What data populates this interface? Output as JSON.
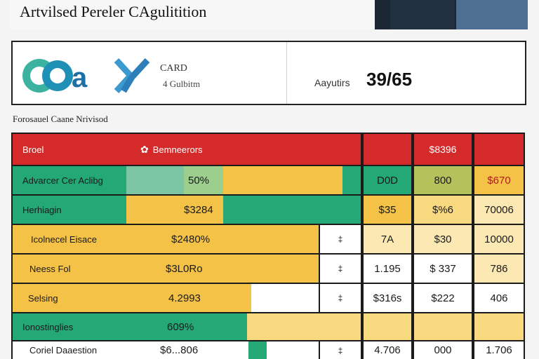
{
  "header": {
    "title": "Artvilsed Pereler CAgulitition"
  },
  "card": {
    "logo_text": "COa",
    "label": "CARD",
    "sublabel": "4 Gulbitm",
    "metric_label": "Aayutirs",
    "metric_value": "39/65"
  },
  "section_title": "Forosauel Caane Nrivisod",
  "table": {
    "header": {
      "left_label": "Broel",
      "icon": "gear-icon",
      "mid_label": "Bemneerors",
      "col4": "",
      "col5": "$8396",
      "col6": ""
    },
    "rows": [
      {
        "label": "Advarcer Cer Aclibg",
        "bar_value": "50%",
        "c3": "",
        "c4": "D0D",
        "c5": "800",
        "c6": "$670"
      },
      {
        "label": "Herhiagin",
        "bar_value": "$3284",
        "c3": "",
        "c4": "$35",
        "c5": "$%6",
        "c6": "70006"
      },
      {
        "label": "Icolnecel Eisace",
        "bar_value": "$2480%",
        "c3": "‡",
        "c4": "7A",
        "c5": "$30",
        "c6": "10000"
      },
      {
        "label": "Neess Fol",
        "bar_value": "$3L0Ro",
        "c3": "‡",
        "c4": "1.195",
        "c5": "$ 337",
        "c6": "786"
      },
      {
        "label": "Selsing",
        "bar_value": "4.2993",
        "c3": "‡",
        "c4": "$316s",
        "c5": "$222",
        "c6": "406"
      },
      {
        "label": "Ionostinglies",
        "bar_value": "609%",
        "c3": "",
        "c4": "",
        "c5": "",
        "c6": ""
      },
      {
        "label": "Coriel Daaestion",
        "bar_value": "$6...806",
        "c3": "‡",
        "c4": "4.706",
        "c5": "000",
        "c6": "1.706"
      }
    ]
  },
  "colors": {
    "red": "#d42a2a",
    "green": "#23a876",
    "yellow": "#f3c247",
    "pale": "#fbe8b3",
    "header_dark": "#1c2733",
    "header_blue": "#4e6f92"
  }
}
